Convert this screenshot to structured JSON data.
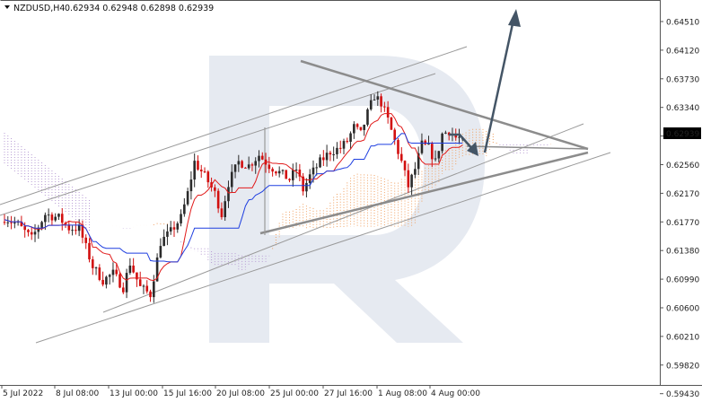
{
  "header": {
    "symbol_timeframe": "NZDUSD,H4",
    "ohlc": "0.62934 0.62948 0.62898 0.62939"
  },
  "price_badge": {
    "label": "0.62939",
    "bg": "#000000",
    "fg": "#ffffff"
  },
  "colors": {
    "bull": "#2b2b2b",
    "bear": "#d20f0f",
    "tenkan": "#e11b1b",
    "kijun": "#1f3fe0",
    "cloud_bull": "#f0a060",
    "cloud_bear": "#b89cd4",
    "trend": "#9a9a9a",
    "triangle": "#8c8c8c",
    "arrow": "#445566",
    "watermark": "#b7c4d8"
  },
  "chart_data": {
    "type": "candlestick",
    "symbol": "NZDUSD",
    "timeframe": "H4",
    "ylim": [
      0.594,
      0.649
    ],
    "y_ticks": [
      "0.64510",
      "0.64120",
      "0.63730",
      "0.63340",
      "0.62950",
      "0.62560",
      "0.62170",
      "0.61770",
      "0.61380",
      "0.60990",
      "0.60600",
      "0.60210",
      "0.59820",
      "0.59430"
    ],
    "x_ticks": [
      "5 Jul 2022",
      "8 Jul 08:00",
      "13 Jul 00:00",
      "15 Jul 16:00",
      "20 Jul 08:00",
      "25 Jul 00:00",
      "27 Jul 16:00",
      "1 Aug 08:00",
      "4 Aug 00:00"
    ],
    "close_path": [
      [
        0,
        0.618
      ],
      [
        4,
        0.617
      ],
      [
        8,
        0.615
      ],
      [
        12,
        0.6185
      ],
      [
        16,
        0.618
      ],
      [
        19,
        0.6165
      ],
      [
        22,
        0.6165
      ],
      [
        26,
        0.611
      ],
      [
        29,
        0.609
      ],
      [
        32,
        0.61
      ],
      [
        35,
        0.608
      ],
      [
        37,
        0.6115
      ],
      [
        40,
        0.608
      ],
      [
        43,
        0.607
      ],
      [
        46,
        0.6145
      ],
      [
        49,
        0.616
      ],
      [
        52,
        0.618
      ],
      [
        54,
        0.6215
      ],
      [
        56,
        0.626
      ],
      [
        59,
        0.624
      ],
      [
        62,
        0.6215
      ],
      [
        64,
        0.6185
      ],
      [
        66,
        0.623
      ],
      [
        69,
        0.626
      ],
      [
        72,
        0.6255
      ],
      [
        75,
        0.627
      ],
      [
        78,
        0.6255
      ],
      [
        81,
        0.6245
      ],
      [
        84,
        0.6235
      ],
      [
        86,
        0.625
      ],
      [
        88,
        0.622
      ],
      [
        90,
        0.624
      ],
      [
        93,
        0.626
      ],
      [
        96,
        0.6275
      ],
      [
        99,
        0.628
      ],
      [
        101,
        0.629
      ],
      [
        103,
        0.631
      ],
      [
        105,
        0.63
      ],
      [
        107,
        0.633
      ],
      [
        109,
        0.6355
      ],
      [
        111,
        0.6345
      ],
      [
        113,
        0.632
      ],
      [
        115,
        0.629
      ],
      [
        117,
        0.626
      ],
      [
        119,
        0.6225
      ],
      [
        121,
        0.625
      ],
      [
        123,
        0.6285
      ],
      [
        125,
        0.628
      ],
      [
        127,
        0.626
      ],
      [
        129,
        0.63
      ],
      [
        131,
        0.6305
      ],
      [
        133,
        0.6295
      ],
      [
        135,
        0.6294
      ]
    ]
  }
}
